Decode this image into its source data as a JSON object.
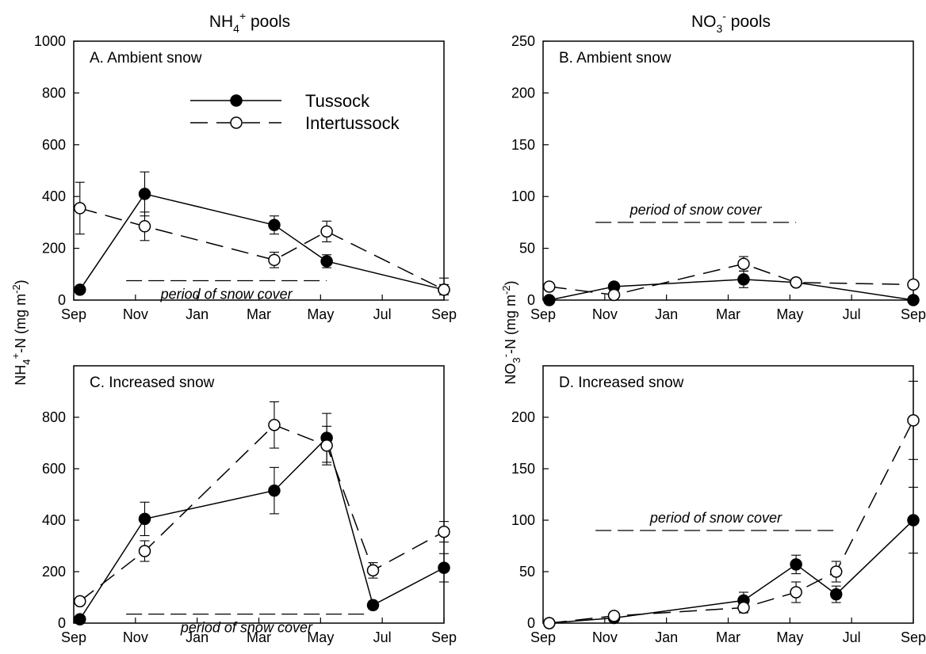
{
  "figure": {
    "col_titles": [
      {
        "text": "NH",
        "sub": "4",
        "sup": "+",
        "rest": " pools"
      },
      {
        "text": "NO",
        "sub": "3",
        "sup": "-",
        "rest": " pools"
      }
    ],
    "ylabels": [
      {
        "pre": "NH",
        "sub": "4",
        "sup": "+",
        "post": "-N (mg m",
        "sup2": "-2",
        "end": ")"
      },
      {
        "pre": "NO",
        "sub": "3",
        "sup": "-",
        "post": "-N (mg m",
        "sup2": "-2",
        "end": ")"
      }
    ],
    "legend": {
      "tussock": "Tussock",
      "intertussock": "Intertussock"
    },
    "snow_label": "period of snow cover"
  },
  "colors": {
    "tussock": "#000000",
    "intertussock": "#ffffff",
    "line": "#000000"
  },
  "chart_data": [
    {
      "type": "line",
      "title": "A. Ambient snow",
      "x_ticks": [
        "Sep",
        "Nov",
        "Jan",
        "Mar",
        "May",
        "Jul",
        "Sep"
      ],
      "x_tick_months": [
        0,
        2,
        4,
        6,
        8,
        10,
        12
      ],
      "ylim": [
        0,
        1000
      ],
      "y_ticks": [
        0,
        200,
        400,
        600,
        800,
        1000
      ],
      "series": [
        {
          "name": "Tussock",
          "x_months": [
            0.2,
            2.3,
            6.5,
            8.2,
            12.0
          ],
          "values": [
            40,
            410,
            290,
            150,
            40
          ],
          "errors": [
            0,
            85,
            35,
            25,
            20
          ]
        },
        {
          "name": "Intertussock",
          "x_months": [
            0.2,
            2.3,
            6.5,
            8.2,
            12.0
          ],
          "values": [
            355,
            285,
            155,
            265,
            40
          ],
          "errors": [
            100,
            55,
            30,
            40,
            45
          ]
        }
      ],
      "snow_cover": {
        "x_months": [
          1.7,
          8.2
        ],
        "y": 75
      },
      "legend": true
    },
    {
      "type": "line",
      "title": "B. Ambient snow",
      "x_ticks": [
        "Sep",
        "Nov",
        "Jan",
        "Mar",
        "May",
        "Jul",
        "Sep"
      ],
      "x_tick_months": [
        0,
        2,
        4,
        6,
        8,
        10,
        12
      ],
      "ylim": [
        0,
        250
      ],
      "y_ticks": [
        0,
        50,
        100,
        150,
        200,
        250
      ],
      "series": [
        {
          "name": "Tussock",
          "x_months": [
            0.2,
            2.3,
            6.5,
            8.2,
            12.0
          ],
          "values": [
            0,
            13,
            20,
            17,
            0
          ],
          "errors": [
            0,
            3,
            8,
            3,
            0
          ]
        },
        {
          "name": "Intertussock",
          "x_months": [
            0.2,
            2.3,
            6.5,
            8.2,
            12.0
          ],
          "values": [
            13,
            5,
            35,
            17,
            15
          ],
          "errors": [
            0,
            0,
            7,
            0,
            0
          ]
        }
      ],
      "snow_cover": {
        "x_months": [
          1.7,
          8.2
        ],
        "y": 75
      },
      "legend": false
    },
    {
      "type": "line",
      "title": "C. Increased snow",
      "x_ticks": [
        "Sep",
        "Nov",
        "Jan",
        "Mar",
        "May",
        "Jul",
        "Sep"
      ],
      "x_tick_months": [
        0,
        2,
        4,
        6,
        8,
        10,
        12
      ],
      "ylim": [
        0,
        1000
      ],
      "y_ticks": [
        0,
        200,
        400,
        600,
        800
      ],
      "series": [
        {
          "name": "Tussock",
          "x_months": [
            0.2,
            2.3,
            6.5,
            8.2,
            9.7,
            12.0
          ],
          "values": [
            15,
            405,
            515,
            720,
            70,
            215
          ],
          "errors": [
            0,
            65,
            90,
            95,
            15,
            55
          ]
        },
        {
          "name": "Intertussock",
          "x_months": [
            0.2,
            2.3,
            6.5,
            8.2,
            9.7,
            12.0
          ],
          "values": [
            85,
            280,
            770,
            690,
            205,
            355
          ],
          "errors": [
            0,
            40,
            90,
            75,
            30,
            40
          ]
        }
      ],
      "snow_cover": {
        "x_months": [
          1.7,
          9.5
        ],
        "y": 35
      },
      "legend": false
    },
    {
      "type": "line",
      "title": "D. Increased snow",
      "x_ticks": [
        "Sep",
        "Nov",
        "Jan",
        "Mar",
        "May",
        "Jul",
        "Sep"
      ],
      "x_tick_months": [
        0,
        2,
        4,
        6,
        8,
        10,
        12
      ],
      "ylim": [
        0,
        250
      ],
      "y_ticks": [
        0,
        50,
        100,
        150,
        200
      ],
      "series": [
        {
          "name": "Tussock",
          "x_months": [
            0.2,
            2.3,
            6.5,
            8.2,
            9.5,
            12.0
          ],
          "values": [
            0,
            5,
            22,
            57,
            28,
            100
          ],
          "errors": [
            0,
            2,
            8,
            9,
            8,
            32
          ]
        },
        {
          "name": "Intertussock",
          "x_months": [
            0.2,
            2.3,
            6.5,
            8.2,
            9.5,
            12.0
          ],
          "values": [
            0,
            7,
            15,
            30,
            50,
            197
          ],
          "errors": [
            0,
            2,
            5,
            10,
            10,
            38
          ]
        }
      ],
      "snow_cover": {
        "x_months": [
          1.7,
          9.5
        ],
        "y": 90
      },
      "legend": false
    }
  ]
}
